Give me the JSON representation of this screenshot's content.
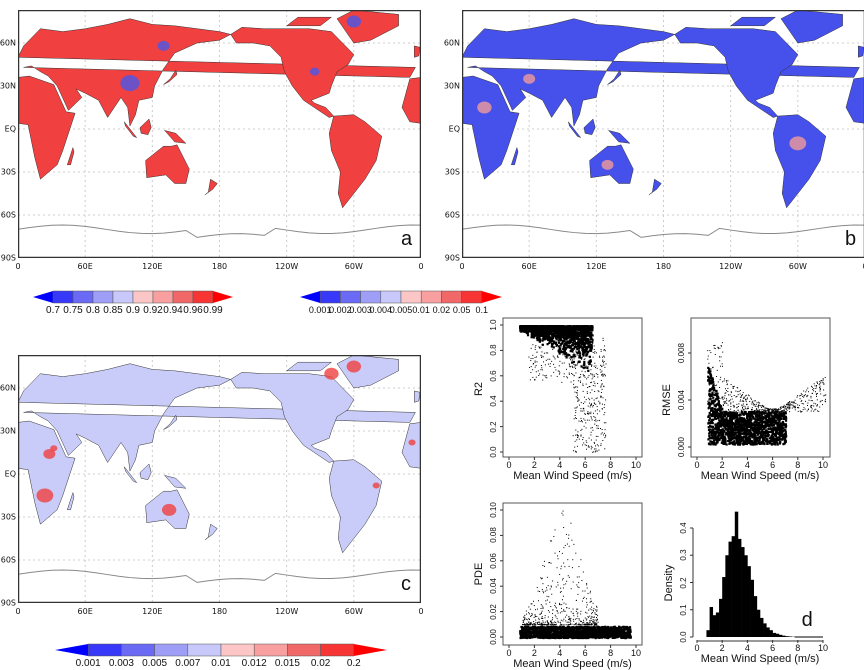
{
  "maps": [
    {
      "id": "a",
      "letter": "a",
      "fill": "#f04040",
      "accent": "#f59a9a",
      "patch": "#4a56e8"
    },
    {
      "id": "b",
      "letter": "b",
      "fill": "#4650ea",
      "accent": "#8b93f2",
      "patch": "#f09a9a"
    },
    {
      "id": "c",
      "letter": "c",
      "fill": "#c9ccf8",
      "accent": "#6f79ee",
      "patch": "#f04040"
    }
  ],
  "map_axes": {
    "x_labels": [
      "0",
      "60E",
      "120E",
      "180",
      "120W",
      "60W",
      "0"
    ],
    "y_labels": [
      "60N",
      "30N",
      "EQ",
      "30S",
      "60S",
      "90S"
    ]
  },
  "colorbars": [
    {
      "labels": [
        "0.7",
        "0.75",
        "0.8",
        "0.85",
        "0.9",
        "0.92",
        "0.94",
        "0.96",
        "0.99"
      ],
      "colors": [
        "#0000ff",
        "#3838f8",
        "#6a6af4",
        "#9e9ef6",
        "#c8c8fa",
        "#fcc6c6",
        "#f8a0a0",
        "#f06868",
        "#f83535",
        "#ff0000"
      ]
    },
    {
      "labels": [
        "0.001",
        "0.002",
        "0.003",
        "0.004",
        "0.005",
        "0.01",
        "0.02",
        "0.05",
        "0.1"
      ],
      "colors": [
        "#0000ff",
        "#3838f8",
        "#6a6af4",
        "#9e9ef6",
        "#c8c8fa",
        "#fcc6c6",
        "#f8a0a0",
        "#f06868",
        "#f83535",
        "#ff0000"
      ]
    },
    {
      "labels": [
        "0.001",
        "0.003",
        "0.005",
        "0.007",
        "0.01",
        "0.012",
        "0.015",
        "0.02",
        "0.2"
      ],
      "colors": [
        "#0000ff",
        "#3838f8",
        "#6a6af4",
        "#9e9ef6",
        "#c8c8fa",
        "#fcc6c6",
        "#f8a0a0",
        "#f06868",
        "#f83535",
        "#ff0000"
      ]
    }
  ],
  "chart_data": [
    {
      "type": "scatter",
      "title": "",
      "xlabel": "Mean Wind Speed (m/s)",
      "ylabel": "R2",
      "xlim": [
        0,
        10
      ],
      "ylim": [
        0,
        1
      ],
      "xticks": [
        "0",
        "2",
        "4",
        "6",
        "8",
        "10"
      ],
      "yticks": [
        "0.0",
        "0.2",
        "0.4",
        "0.6",
        "0.8",
        "1.0"
      ],
      "x_range": [
        0.8,
        8
      ],
      "y_range": [
        0.02,
        1.0
      ],
      "dense_band": {
        "x": [
          0.8,
          6.5
        ],
        "y": [
          0.75,
          1.0
        ]
      }
    },
    {
      "type": "scatter",
      "title": "",
      "xlabel": "Mean Wind Speed (m/s)",
      "ylabel": "RMSE",
      "xlim": [
        0,
        10
      ],
      "ylim": [
        0,
        0.0095
      ],
      "xticks": [
        "0",
        "2",
        "4",
        "6",
        "8",
        "10"
      ],
      "yticks": [
        "0.000",
        "0.004",
        "0.008"
      ],
      "x_range": [
        0.8,
        10.2
      ],
      "y_range": [
        0.0002,
        0.0095
      ],
      "dense_band": {
        "x": [
          0.8,
          7
        ],
        "y": [
          0.0003,
          0.003
        ]
      }
    },
    {
      "type": "scatter",
      "title": "",
      "xlabel": "Mean Wind Speed (m/s)",
      "ylabel": "PDE",
      "xlim": [
        0,
        10
      ],
      "ylim": [
        0,
        0.1
      ],
      "xticks": [
        "0",
        "2",
        "4",
        "6",
        "8",
        "10"
      ],
      "yticks": [
        "0.00",
        "0.02",
        "0.04",
        "0.06",
        "0.08",
        "0.10"
      ],
      "x_range": [
        0.8,
        10
      ],
      "y_range": [
        0,
        0.1
      ],
      "dense_band": {
        "x": [
          0.8,
          9.5
        ],
        "y": [
          0,
          0.01
        ]
      }
    },
    {
      "type": "bar",
      "title": "",
      "xlabel": "Mean Wind Speed (m/s)",
      "ylabel": "Density",
      "xlim": [
        0,
        10
      ],
      "ylim": [
        0,
        0.46
      ],
      "xticks": [
        "0",
        "2",
        "4",
        "6",
        "8",
        "10"
      ],
      "yticks": [
        "0.0",
        "0.1",
        "0.2",
        "0.3",
        "0.4"
      ],
      "bin_width": 0.25,
      "panel_letter": "d",
      "bin_starts": [
        0.75,
        1.0,
        1.25,
        1.5,
        1.75,
        2.0,
        2.25,
        2.5,
        2.75,
        3.0,
        3.25,
        3.5,
        3.75,
        4.0,
        4.25,
        4.5,
        4.75,
        5.0,
        5.25,
        5.5,
        5.75,
        6.0,
        6.25,
        6.5,
        6.75,
        7.0,
        7.25,
        7.5
      ],
      "values": [
        0.025,
        0.11,
        0.08,
        0.09,
        0.14,
        0.22,
        0.3,
        0.35,
        0.37,
        0.46,
        0.36,
        0.33,
        0.3,
        0.26,
        0.21,
        0.15,
        0.1,
        0.07,
        0.05,
        0.035,
        0.025,
        0.015,
        0.012,
        0.008,
        0.005,
        0.003,
        0.002,
        0.001
      ]
    }
  ]
}
